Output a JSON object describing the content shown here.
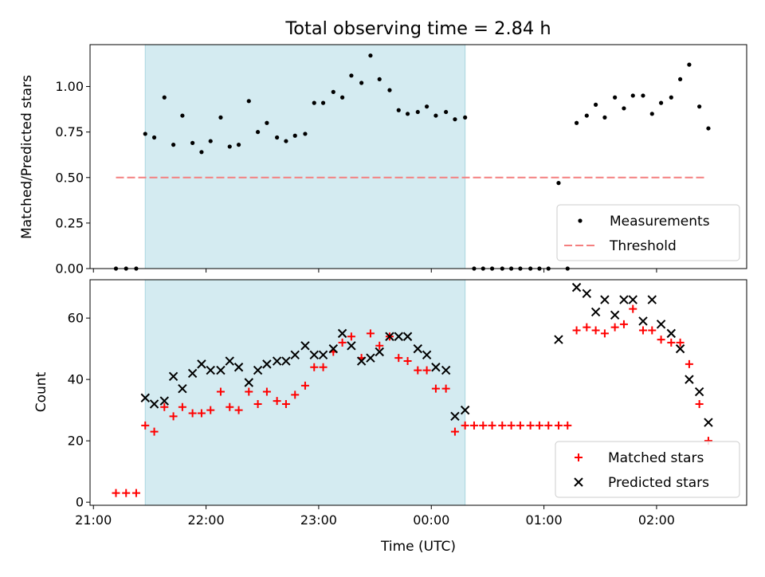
{
  "chart_data": {
    "title": "Total observing time = 2.84 h",
    "xlabel": "Time (UTC)",
    "x_ticks": [
      "21:00",
      "22:00",
      "23:00",
      "00:00",
      "01:00",
      "02:00"
    ],
    "x_tick_hours": [
      0,
      1,
      2,
      3,
      4,
      5
    ],
    "x_range": [
      "20:58",
      "23:54 +3h"
    ],
    "x_range_hours": [
      -0.03,
      5.8
    ],
    "shaded_region_hours": [
      0.46,
      3.3
    ],
    "shaded_color": "#d4ebf1",
    "panels": [
      {
        "type": "scatter",
        "ylabel": "Matched/Predicted stars",
        "ylim": [
          0,
          1.23
        ],
        "y_ticks": [
          "0.00",
          "0.25",
          "0.50",
          "0.75",
          "1.00"
        ],
        "y_tick_values": [
          0,
          0.25,
          0.5,
          0.75,
          1.0
        ],
        "legend_position": "lower-right",
        "threshold": {
          "name": "Threshold",
          "value": 0.5,
          "x_range_hours": [
            0.2,
            5.45
          ],
          "color": "#f47f7f"
        },
        "series": [
          {
            "name": "Measurements",
            "color": "#000000",
            "x_hours": [
              0.2,
              0.29,
              0.38,
              0.46,
              0.54,
              0.63,
              0.71,
              0.79,
              0.88,
              0.96,
              1.04,
              1.13,
              1.21,
              1.29,
              1.38,
              1.46,
              1.54,
              1.63,
              1.71,
              1.79,
              1.88,
              1.96,
              2.04,
              2.13,
              2.21,
              2.29,
              2.38,
              2.46,
              2.54,
              2.63,
              2.71,
              2.79,
              2.88,
              2.96,
              3.04,
              3.13,
              3.21,
              3.3,
              3.38,
              3.46,
              3.54,
              3.63,
              3.71,
              3.79,
              3.88,
              3.96,
              4.04,
              4.13,
              4.21,
              4.29,
              4.38,
              4.46,
              4.54,
              4.63,
              4.71,
              4.79,
              4.88,
              4.96,
              5.04,
              5.13,
              5.21,
              5.29,
              5.38,
              5.46
            ],
            "y": [
              0,
              0,
              0,
              0.74,
              0.72,
              0.94,
              0.68,
              0.84,
              0.69,
              0.64,
              0.7,
              0.83,
              0.67,
              0.68,
              0.92,
              0.75,
              0.8,
              0.72,
              0.7,
              0.73,
              0.74,
              0.91,
              0.91,
              0.97,
              0.94,
              1.06,
              1.02,
              1.17,
              1.04,
              0.98,
              0.87,
              0.85,
              0.86,
              0.89,
              0.84,
              0.86,
              0.82,
              0.83,
              0,
              0,
              0,
              0,
              0,
              0,
              0,
              0,
              0,
              0.47,
              0,
              0.8,
              0.84,
              0.9,
              0.83,
              0.94,
              0.88,
              0.95,
              0.95,
              0.85,
              0.91,
              0.94,
              1.04,
              1.12,
              0.89,
              0.77
            ]
          }
        ]
      },
      {
        "type": "scatter",
        "ylabel": "Count",
        "ylim": [
          -1,
          72.5
        ],
        "y_ticks": [
          "0",
          "20",
          "40",
          "60"
        ],
        "y_tick_values": [
          0,
          20,
          40,
          60
        ],
        "legend_position": "lower-right",
        "series": [
          {
            "name": "Matched stars",
            "marker": "plus",
            "color": "#ff0000",
            "x_hours": [
              0.2,
              0.29,
              0.38,
              0.46,
              0.54,
              0.63,
              0.71,
              0.79,
              0.88,
              0.96,
              1.04,
              1.13,
              1.21,
              1.29,
              1.38,
              1.46,
              1.54,
              1.63,
              1.71,
              1.79,
              1.88,
              1.96,
              2.04,
              2.13,
              2.21,
              2.29,
              2.38,
              2.46,
              2.54,
              2.63,
              2.71,
              2.79,
              2.88,
              2.96,
              3.04,
              3.13,
              3.21,
              3.3,
              3.38,
              3.46,
              3.54,
              3.63,
              3.71,
              3.79,
              3.88,
              3.96,
              4.04,
              4.13,
              4.21,
              4.29,
              4.38,
              4.46,
              4.54,
              4.63,
              4.71,
              4.79,
              4.88,
              4.96,
              5.04,
              5.13,
              5.21,
              5.29,
              5.38,
              5.46
            ],
            "y": [
              3,
              3,
              3,
              25,
              23,
              31,
              28,
              31,
              29,
              29,
              30,
              36,
              31,
              30,
              36,
              32,
              36,
              33,
              32,
              35,
              38,
              44,
              44,
              49,
              52,
              54,
              47,
              55,
              51,
              54,
              47,
              46,
              43,
              43,
              37,
              37,
              23,
              25,
              25,
              25,
              25,
              25,
              25,
              25,
              25,
              25,
              25,
              25,
              25,
              56,
              57,
              56,
              55,
              57,
              58,
              63,
              56,
              56,
              53,
              52,
              52,
              45,
              32,
              20
            ]
          },
          {
            "name": "Predicted stars",
            "marker": "x",
            "color": "#000000",
            "x_hours": [
              0.46,
              0.54,
              0.63,
              0.71,
              0.79,
              0.88,
              0.96,
              1.04,
              1.13,
              1.21,
              1.29,
              1.38,
              1.46,
              1.54,
              1.63,
              1.71,
              1.79,
              1.88,
              1.96,
              2.04,
              2.13,
              2.21,
              2.29,
              2.38,
              2.46,
              2.54,
              2.63,
              2.71,
              2.79,
              2.88,
              2.96,
              3.04,
              3.13,
              3.21,
              3.3,
              4.13,
              4.29,
              4.38,
              4.46,
              4.54,
              4.63,
              4.71,
              4.79,
              4.88,
              4.96,
              5.04,
              5.13,
              5.21,
              5.29,
              5.38,
              5.46
            ],
            "y": [
              34,
              32,
              33,
              41,
              37,
              42,
              45,
              43,
              43,
              46,
              44,
              39,
              43,
              45,
              46,
              46,
              48,
              51,
              48,
              48,
              50,
              55,
              51,
              46,
              47,
              49,
              54,
              54,
              54,
              50,
              48,
              44,
              43,
              28,
              30,
              53,
              70,
              68,
              62,
              66,
              61,
              66,
              66,
              59,
              66,
              58,
              55,
              50,
              40,
              36,
              26
            ]
          }
        ]
      }
    ]
  }
}
